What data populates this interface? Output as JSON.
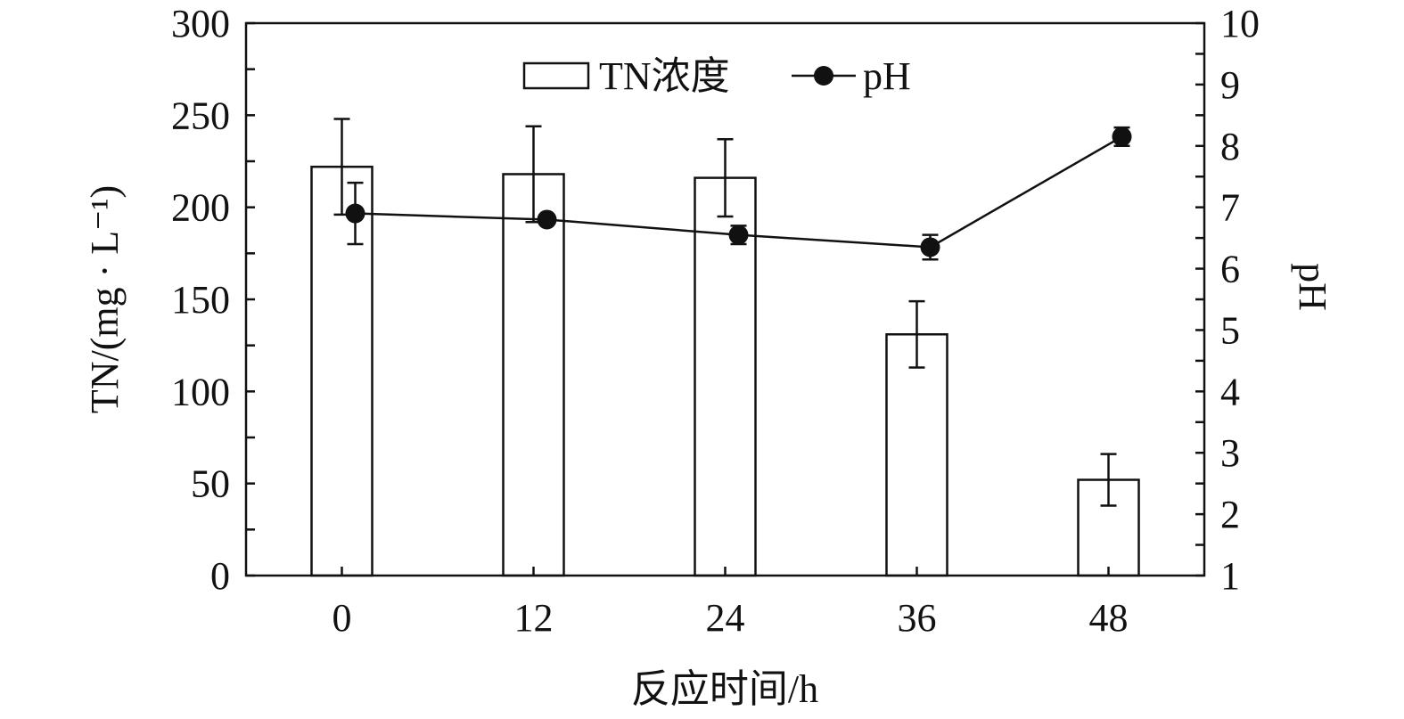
{
  "chart_data": {
    "type": "bar",
    "categories": [
      "0",
      "12",
      "24",
      "36",
      "48"
    ],
    "xlabel": "反应时间/h",
    "ylabel": "TN/(mg · L⁻¹)",
    "y2label": "pH",
    "ylim": [
      0,
      300
    ],
    "y2lim": [
      1,
      10
    ],
    "y_ticks": [
      "0",
      "50",
      "100",
      "150",
      "200",
      "250",
      "300"
    ],
    "y2_ticks": [
      "1",
      "2",
      "3",
      "4",
      "5",
      "6",
      "7",
      "8",
      "9",
      "10"
    ],
    "legend_position": "top-center",
    "series": [
      {
        "name": "TN浓度",
        "kind": "bar",
        "axis": "left",
        "values": [
          222,
          218,
          216,
          131,
          52
        ],
        "errors": [
          26,
          26,
          21,
          18,
          14
        ]
      },
      {
        "name": "pH",
        "kind": "line",
        "axis": "right",
        "values": [
          6.9,
          6.8,
          6.55,
          6.35,
          8.15
        ],
        "errors": [
          0.5,
          0,
          0.15,
          0.2,
          0.15
        ]
      }
    ]
  }
}
